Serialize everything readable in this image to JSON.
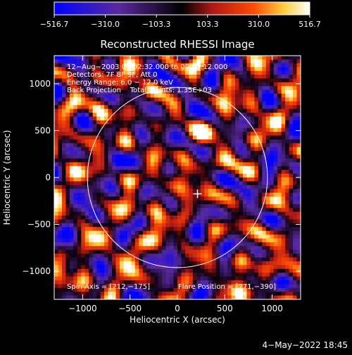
{
  "chart_data": {
    "type": "heatmap",
    "title": "Reconstructed RHESSI Image",
    "xlabel": "Heliocentric X (arcsec)",
    "ylabel": "Heliocentric Y (arcsec)",
    "xlim": [
      -1300,
      1300
    ],
    "ylim": [
      -1300,
      1300
    ],
    "x_ticks": [
      -1000,
      -500,
      0,
      500,
      1000
    ],
    "y_ticks": [
      -1000,
      -500,
      0,
      500,
      1000
    ],
    "x_tick_labels": [
      "−1000",
      "−500",
      "0",
      "500",
      "1000"
    ],
    "y_tick_labels": [
      "−1000",
      "−500",
      "0",
      "500",
      "1000"
    ],
    "colorbar": {
      "range": [
        -516.7,
        516.7
      ],
      "tick_labels": [
        "−516.7",
        "−310.0",
        "−103.3",
        "103.3",
        "310.0",
        "516.7"
      ],
      "colors": [
        "#0000ff",
        "#5a2aa0",
        "#000000",
        "#b01818",
        "#ff4a00",
        "#ffd040",
        "#ffffff"
      ]
    },
    "annotations": [
      "12−Aug−2003 09:02:32.000 to 09:05:12.000",
      "Detectors: 7F 8F 9F, Att 0",
      "Energy Range: 6.0 − 12.0 keV",
      "Back Projection    Total counts: 1.35E+03"
    ],
    "footer_left": "Spin Axis = [212,−175]",
    "footer_right": "Flare Position = [771,−390]",
    "spin_axis": [
      212,
      -175
    ],
    "flare_position": [
      771,
      -390
    ],
    "solar_disk_radius_arcsec": 950,
    "grid": false
  },
  "timestamp": "4−May−2022 18:45"
}
